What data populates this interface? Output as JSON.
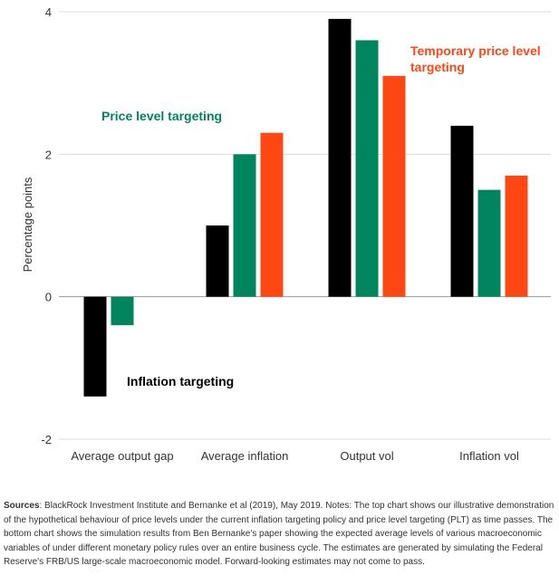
{
  "chart_data": {
    "type": "bar",
    "ylabel": "Percentage points",
    "xlabel": "",
    "ylim": [
      -2,
      4
    ],
    "yticks": [
      -2,
      0,
      2,
      4
    ],
    "grid": true,
    "categories": [
      "Average output gap",
      "Average inflation",
      "Output vol",
      "Inflation vol"
    ],
    "series": [
      {
        "name": "Inflation targeting",
        "color": "#000000",
        "values": [
          -1.4,
          1.0,
          3.9,
          2.4
        ]
      },
      {
        "name": "Price level targeting",
        "color": "#00855f",
        "values": [
          -0.4,
          2.0,
          3.6,
          1.5
        ]
      },
      {
        "name": "Temporary price level targeting",
        "color": "#ff4713",
        "values": [
          null,
          2.3,
          3.1,
          1.7
        ]
      }
    ],
    "annotations": [
      {
        "text": "Inflation targeting",
        "color": "#000000"
      },
      {
        "text": "Price level targeting",
        "color": "#00855f"
      },
      {
        "text": "Temporary price level targeting",
        "color": "#ff4713"
      }
    ]
  },
  "footer": {
    "sources_label": "Sources",
    "text": ": BlackRock Investment Institute and Bernanke et al (2019), May 2019. Notes: The top chart shows our illustrative demonstration of the hypothetical behaviour of price levels under the current inflation targeting policy and price level targeting (PLT) as time passes. The bottom chart shows the simulation results from Ben Bernanke's paper showing the expected average levels of various macroeconomic variables of under different monetary policy rules over an entire business cycle. The estimates are generated by simulating the Federal Reserve's FRB/US large-scale macroeconomic model. Forward-looking estimates may not come to pass."
  }
}
